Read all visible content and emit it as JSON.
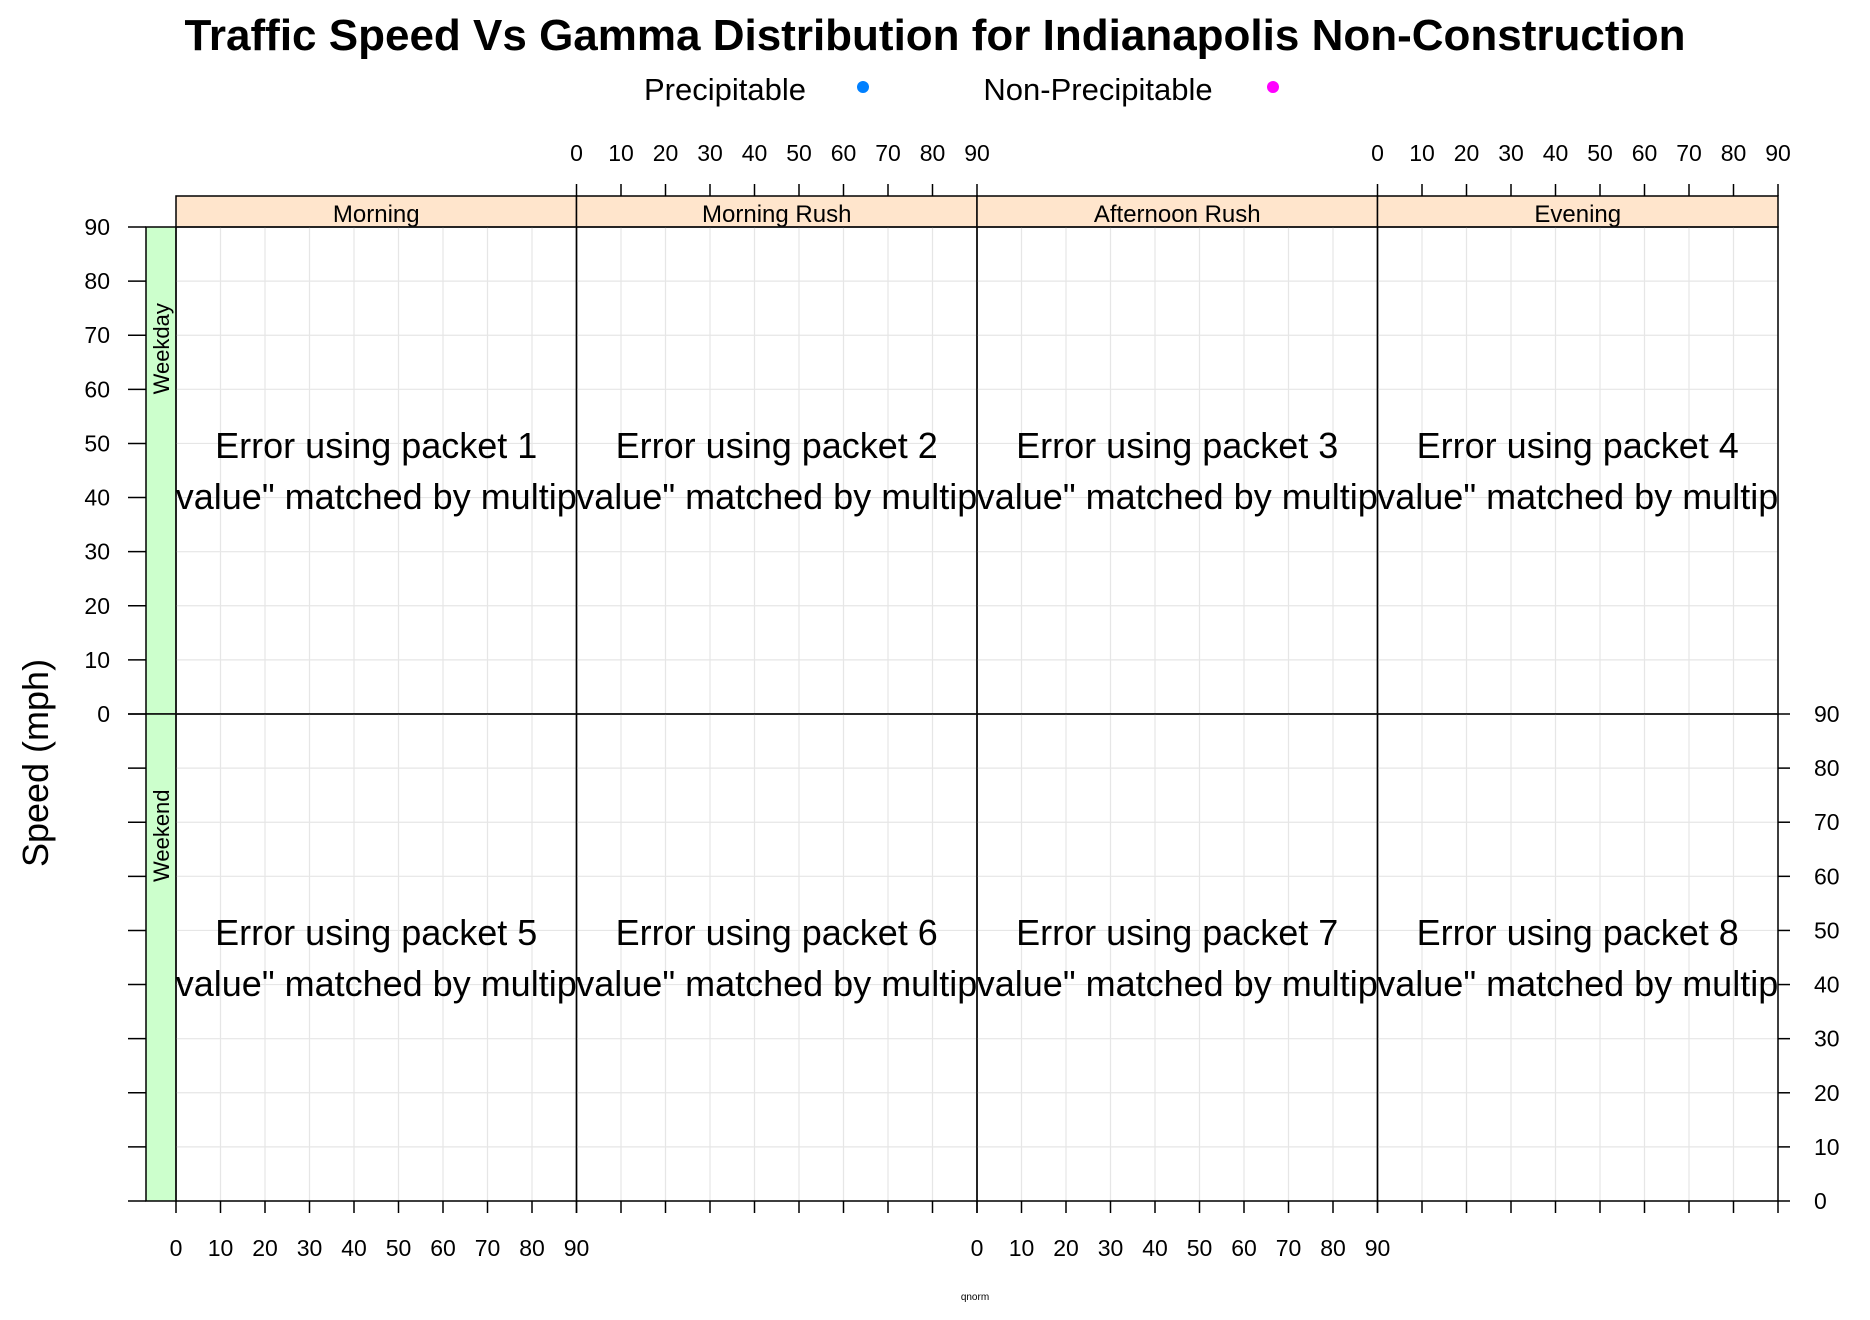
{
  "chart_data": {
    "type": "scatter",
    "title": "Traffic Speed Vs Gamma Distribution for Indianapolis Non-Construction",
    "xlabel": "qnorm",
    "ylabel": "Speed (mph)",
    "xlim": [
      0,
      90
    ],
    "ylim": [
      0,
      90
    ],
    "x_ticks": [
      0,
      10,
      20,
      30,
      40,
      50,
      60,
      70,
      80,
      90
    ],
    "y_ticks": [
      0,
      10,
      20,
      30,
      40,
      50,
      60,
      70,
      80,
      90
    ],
    "grid": true,
    "legend_position": "top",
    "legend": [
      {
        "name": "Precipitable",
        "color": "#0080ff"
      },
      {
        "name": "Non-Precipitable",
        "color": "#ff00ff"
      }
    ],
    "columns": [
      "Morning",
      "Morning Rush",
      "Afternoon Rush",
      "Evening"
    ],
    "rows": [
      "Weekday",
      "Weekend"
    ],
    "strip_color": "#ffe5cc",
    "row_strip_color": "#ccffcc",
    "panels": [
      {
        "row": "Weekday",
        "column": "Morning",
        "line1": "Error using packet 1",
        "line2": "value\" matched by multip"
      },
      {
        "row": "Weekday",
        "column": "Morning Rush",
        "line1": "Error using packet 2",
        "line2": "value\" matched by multip"
      },
      {
        "row": "Weekday",
        "column": "Afternoon Rush",
        "line1": "Error using packet 3",
        "line2": "value\" matched by multip"
      },
      {
        "row": "Weekday",
        "column": "Evening",
        "line1": "Error using packet 4",
        "line2": "value\" matched by multip"
      },
      {
        "row": "Weekend",
        "column": "Morning",
        "line1": "Error using packet 5",
        "line2": "value\" matched by multip"
      },
      {
        "row": "Weekend",
        "column": "Morning Rush",
        "line1": "Error using packet 6",
        "line2": "value\" matched by multip"
      },
      {
        "row": "Weekend",
        "column": "Afternoon Rush",
        "line1": "Error using packet 7",
        "line2": "value\" matched by multip"
      },
      {
        "row": "Weekend",
        "column": "Evening",
        "line1": "Error using packet 8",
        "line2": "value\" matched by multip"
      }
    ],
    "series": [
      {
        "name": "Precipitable",
        "values": []
      },
      {
        "name": "Non-Precipitable",
        "values": []
      }
    ]
  }
}
